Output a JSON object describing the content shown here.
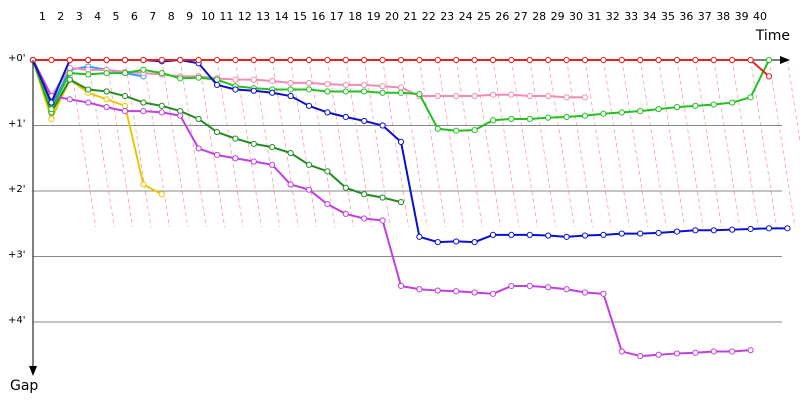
{
  "chart_data": {
    "type": "line",
    "x_label": "Time",
    "y_label": "Gap",
    "xlim": [
      0,
      41.5
    ],
    "ylim": [
      -0.55,
      4.75
    ],
    "xticks": [
      1,
      2,
      3,
      4,
      5,
      6,
      7,
      8,
      9,
      10,
      11,
      12,
      13,
      14,
      15,
      16,
      17,
      18,
      19,
      20,
      21,
      22,
      23,
      24,
      25,
      26,
      27,
      28,
      29,
      30,
      31,
      32,
      33,
      34,
      35,
      36,
      37,
      38,
      39,
      40
    ],
    "yticks": [
      {
        "value": 0,
        "label": "+0'"
      },
      {
        "value": 1,
        "label": "+1'"
      },
      {
        "value": 2,
        "label": "+2'"
      },
      {
        "value": 3,
        "label": "+3'"
      },
      {
        "value": 4,
        "label": "+4'"
      }
    ],
    "grid": true,
    "x": [
      0,
      1,
      2,
      3,
      4,
      5,
      6,
      7,
      8,
      9,
      10,
      11,
      12,
      13,
      14,
      15,
      16,
      17,
      18,
      19,
      20,
      21,
      22,
      23,
      24,
      25,
      26,
      27,
      28,
      29,
      30,
      31,
      32,
      33,
      34,
      35,
      36,
      37,
      38,
      39,
      40,
      41
    ],
    "series": [
      {
        "color": "#e8c800",
        "values": [
          0,
          0.9,
          0.3,
          0.5,
          0.6,
          0.7,
          1.9,
          2.05,
          null,
          null,
          null,
          null,
          null,
          null,
          null,
          null,
          null,
          null,
          null,
          null,
          null,
          null,
          null,
          null,
          null,
          null,
          null,
          null,
          null,
          null,
          null,
          null,
          null,
          null,
          null,
          null,
          null,
          null,
          null,
          null,
          null,
          null
        ]
      },
      {
        "color": "#3399ff",
        "values": [
          0,
          0.7,
          0.15,
          0.1,
          0.15,
          0.2,
          0.25,
          null,
          null,
          null,
          null,
          null,
          null,
          null,
          null,
          null,
          null,
          null,
          null,
          null,
          null,
          null,
          null,
          null,
          null,
          null,
          null,
          null,
          null,
          null,
          null,
          null,
          null,
          null,
          null,
          null,
          null,
          null,
          null,
          null,
          null,
          null
        ]
      },
      {
        "color": "#228b22",
        "values": [
          0,
          0.8,
          0.3,
          0.45,
          0.48,
          0.55,
          0.65,
          0.7,
          0.78,
          0.9,
          1.1,
          1.2,
          1.28,
          1.33,
          1.42,
          1.6,
          1.7,
          1.95,
          2.05,
          2.1,
          2.17,
          null,
          null,
          null,
          null,
          null,
          null,
          null,
          null,
          null,
          null,
          null,
          null,
          null,
          null,
          null,
          null,
          null,
          null,
          null,
          null,
          null
        ]
      },
      {
        "color": "#f08cb4",
        "values": [
          0,
          0.55,
          0.12,
          0.15,
          0.15,
          0.18,
          0.2,
          0.22,
          0.25,
          0.25,
          0.28,
          0.3,
          0.3,
          0.32,
          0.35,
          0.35,
          0.37,
          0.38,
          0.38,
          0.4,
          0.42,
          0.55,
          0.55,
          0.55,
          0.55,
          0.53,
          0.53,
          0.55,
          0.55,
          0.57,
          0.57,
          null,
          null,
          null,
          null,
          null,
          null,
          null,
          null,
          null,
          null,
          null
        ]
      },
      {
        "color": "#c040e0",
        "values": [
          0,
          0.55,
          0.6,
          0.65,
          0.72,
          0.78,
          0.78,
          0.8,
          0.85,
          1.35,
          1.45,
          1.5,
          1.55,
          1.6,
          1.9,
          1.98,
          2.2,
          2.35,
          2.42,
          2.45,
          3.45,
          3.5,
          3.52,
          3.53,
          3.55,
          3.57,
          3.45,
          3.45,
          3.47,
          3.5,
          3.55,
          3.57,
          4.45,
          4.52,
          4.5,
          4.48,
          4.47,
          4.45,
          4.45,
          4.43,
          null,
          null
        ]
      },
      {
        "color": "#22c020",
        "values": [
          0,
          0.75,
          0.2,
          0.22,
          0.2,
          0.2,
          0.15,
          0.2,
          0.28,
          0.27,
          0.3,
          0.4,
          0.43,
          0.45,
          0.45,
          0.45,
          0.48,
          0.48,
          0.48,
          0.5,
          0.5,
          0.52,
          1.05,
          1.08,
          1.07,
          0.92,
          0.9,
          0.9,
          0.88,
          0.87,
          0.85,
          0.82,
          0.8,
          0.78,
          0.75,
          0.72,
          0.7,
          0.68,
          0.65,
          0.57,
          0,
          null
        ]
      },
      {
        "color": "#0a10d0",
        "values": [
          0,
          0.65,
          0,
          0,
          0,
          0,
          0,
          0.02,
          0,
          0.05,
          0.38,
          0.45,
          0.47,
          0.5,
          0.55,
          0.7,
          0.8,
          0.87,
          0.93,
          1.0,
          1.25,
          2.7,
          2.78,
          2.77,
          2.78,
          2.67,
          2.67,
          2.67,
          2.68,
          2.7,
          2.68,
          2.67,
          2.65,
          2.65,
          2.64,
          2.62,
          2.6,
          2.6,
          2.59,
          2.58,
          2.57,
          2.57
        ]
      },
      {
        "color": "#e82020",
        "values": [
          0,
          0,
          0,
          0,
          0,
          0,
          0,
          0,
          0,
          0,
          0,
          0,
          0,
          0,
          0,
          0,
          0,
          0,
          0,
          0,
          0,
          0,
          0,
          0,
          0,
          0,
          0,
          0,
          0,
          0,
          0,
          0,
          0,
          0,
          0,
          0,
          0,
          0,
          0,
          0,
          0.25,
          null
        ]
      }
    ]
  }
}
